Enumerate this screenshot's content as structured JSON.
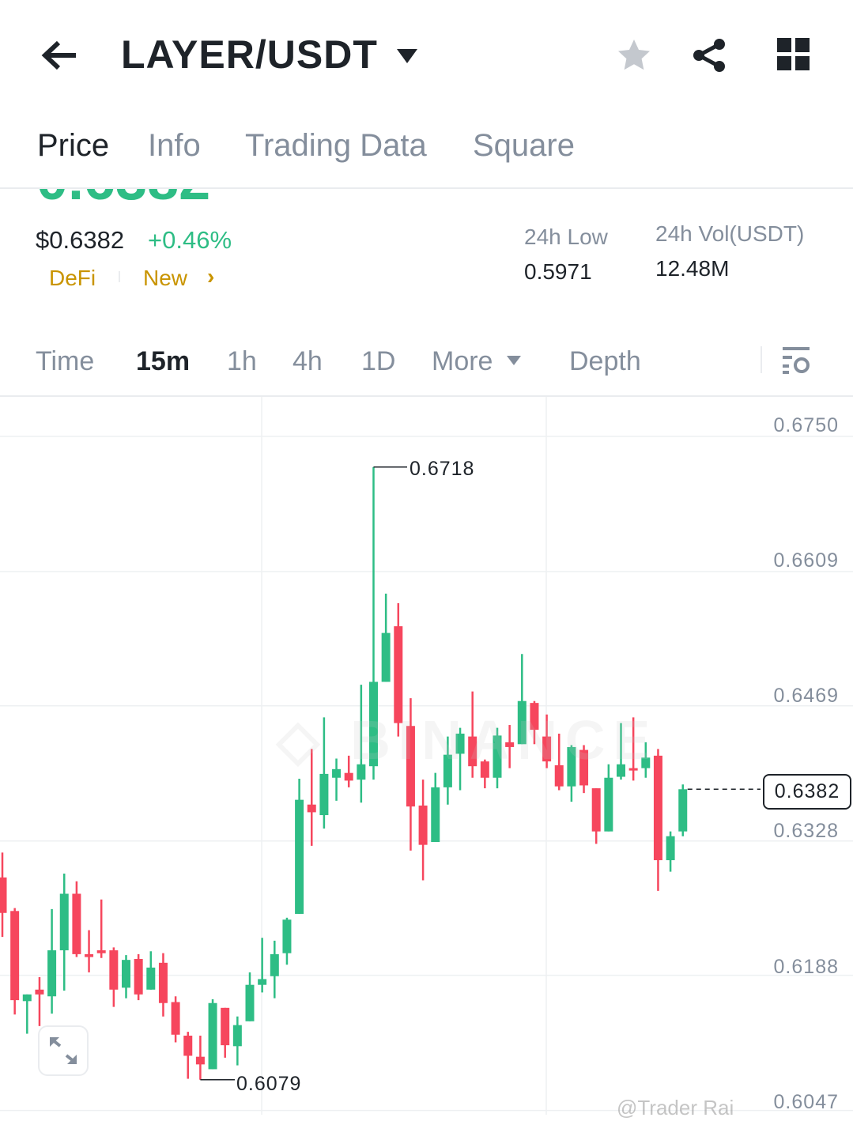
{
  "header": {
    "pair": "LAYER/USDT",
    "icons": [
      "back-arrow-icon",
      "caret-down-icon",
      "star-icon",
      "share-icon",
      "grid-icon"
    ]
  },
  "tabs": [
    {
      "label": "Price",
      "active": true
    },
    {
      "label": "Info"
    },
    {
      "label": "Trading Data"
    },
    {
      "label": "Square"
    }
  ],
  "price": {
    "last": "0.6382",
    "usd": "$0.6382",
    "change": "+0.46%",
    "tags": [
      "DeFi",
      "New"
    ],
    "low_label": "24h Low",
    "low_value": "0.5971",
    "vol_label": "24h Vol(USDT)",
    "vol_value": "12.48M"
  },
  "intervals": [
    {
      "label": "Time"
    },
    {
      "label": "15m",
      "active": true
    },
    {
      "label": "1h"
    },
    {
      "label": "4h"
    },
    {
      "label": "1D"
    },
    {
      "label": "More"
    },
    {
      "label": "Depth"
    }
  ],
  "colors": {
    "up": "#2ebd85",
    "down": "#f6465d",
    "accent": "#f0b90b",
    "tag": "#c99400"
  },
  "watermark": "@Trader Rai",
  "chart_data": {
    "type": "candlestick",
    "y_ticks": [
      "0.6750",
      "0.6609",
      "0.6469",
      "0.6328",
      "0.6188",
      "0.6047"
    ],
    "ylim": [
      0.6047,
      0.675
    ],
    "high_label": "0.6718",
    "low_label": "0.6079",
    "current_label": "0.6382",
    "current": 0.6382,
    "ohlc": [
      [
        0.629,
        0.6316,
        0.6228,
        0.6253
      ],
      [
        0.6255,
        0.6258,
        0.6147,
        0.6162
      ],
      [
        0.6161,
        0.6168,
        0.6127,
        0.6168
      ],
      [
        0.6173,
        0.6186,
        0.6135,
        0.6168
      ],
      [
        0.6166,
        0.6257,
        0.6148,
        0.6214
      ],
      [
        0.6214,
        0.6294,
        0.6172,
        0.6273
      ],
      [
        0.6273,
        0.6286,
        0.6207,
        0.621
      ],
      [
        0.621,
        0.6235,
        0.6191,
        0.6207
      ],
      [
        0.6214,
        0.6267,
        0.6206,
        0.6211
      ],
      [
        0.6214,
        0.6217,
        0.6155,
        0.6173
      ],
      [
        0.6175,
        0.6209,
        0.6164,
        0.6204
      ],
      [
        0.6205,
        0.621,
        0.6162,
        0.6168
      ],
      [
        0.6173,
        0.6213,
        0.6173,
        0.6196
      ],
      [
        0.6201,
        0.6211,
        0.6145,
        0.6159
      ],
      [
        0.616,
        0.6166,
        0.6118,
        0.6126
      ],
      [
        0.6125,
        0.6129,
        0.608,
        0.6104
      ],
      [
        0.6103,
        0.6125,
        0.6079,
        0.6095
      ],
      [
        0.609,
        0.6163,
        0.609,
        0.6159
      ],
      [
        0.6154,
        0.6154,
        0.6102,
        0.6115
      ],
      [
        0.6114,
        0.6145,
        0.6094,
        0.6136
      ],
      [
        0.614,
        0.6191,
        0.614,
        0.6178
      ],
      [
        0.6178,
        0.6227,
        0.617,
        0.6184
      ],
      [
        0.6187,
        0.6224,
        0.6164,
        0.621
      ],
      [
        0.6211,
        0.6248,
        0.6199,
        0.6246
      ],
      [
        0.6252,
        0.6393,
        0.6252,
        0.6371
      ],
      [
        0.6366,
        0.6424,
        0.6323,
        0.6358
      ],
      [
        0.6355,
        0.6457,
        0.6341,
        0.6398
      ],
      [
        0.6394,
        0.6414,
        0.637,
        0.6403
      ],
      [
        0.6399,
        0.6417,
        0.6384,
        0.6391
      ],
      [
        0.6392,
        0.6491,
        0.6368,
        0.6408
      ],
      [
        0.6406,
        0.6718,
        0.6392,
        0.6494
      ],
      [
        0.6494,
        0.6586,
        0.6494,
        0.6545
      ],
      [
        0.6552,
        0.6576,
        0.6437,
        0.6451
      ],
      [
        0.6448,
        0.6477,
        0.6318,
        0.6364
      ],
      [
        0.6365,
        0.6392,
        0.6287,
        0.6324
      ],
      [
        0.6327,
        0.6399,
        0.6327,
        0.6384
      ],
      [
        0.6384,
        0.6437,
        0.6366,
        0.6418
      ],
      [
        0.6419,
        0.6446,
        0.6381,
        0.644
      ],
      [
        0.6437,
        0.6484,
        0.6394,
        0.6406
      ],
      [
        0.6411,
        0.6413,
        0.6383,
        0.6394
      ],
      [
        0.6394,
        0.6446,
        0.6383,
        0.6438
      ],
      [
        0.6431,
        0.6449,
        0.6404,
        0.6426
      ],
      [
        0.6429,
        0.6523,
        0.6429,
        0.6474
      ],
      [
        0.6472,
        0.6474,
        0.6429,
        0.6444
      ],
      [
        0.6437,
        0.646,
        0.6404,
        0.6411
      ],
      [
        0.6407,
        0.644,
        0.6381,
        0.6385
      ],
      [
        0.6385,
        0.6428,
        0.6369,
        0.6426
      ],
      [
        0.6423,
        0.6428,
        0.6378,
        0.6386
      ],
      [
        0.6383,
        0.6383,
        0.6325,
        0.6338
      ],
      [
        0.6338,
        0.6408,
        0.6338,
        0.6394
      ],
      [
        0.6395,
        0.6451,
        0.6392,
        0.6408
      ],
      [
        0.6404,
        0.6457,
        0.6391,
        0.6402
      ],
      [
        0.6404,
        0.6431,
        0.6394,
        0.6415
      ],
      [
        0.6417,
        0.6424,
        0.6276,
        0.6308
      ],
      [
        0.6308,
        0.6338,
        0.6296,
        0.6333
      ],
      [
        0.6338,
        0.6387,
        0.6333,
        0.6382
      ]
    ]
  }
}
